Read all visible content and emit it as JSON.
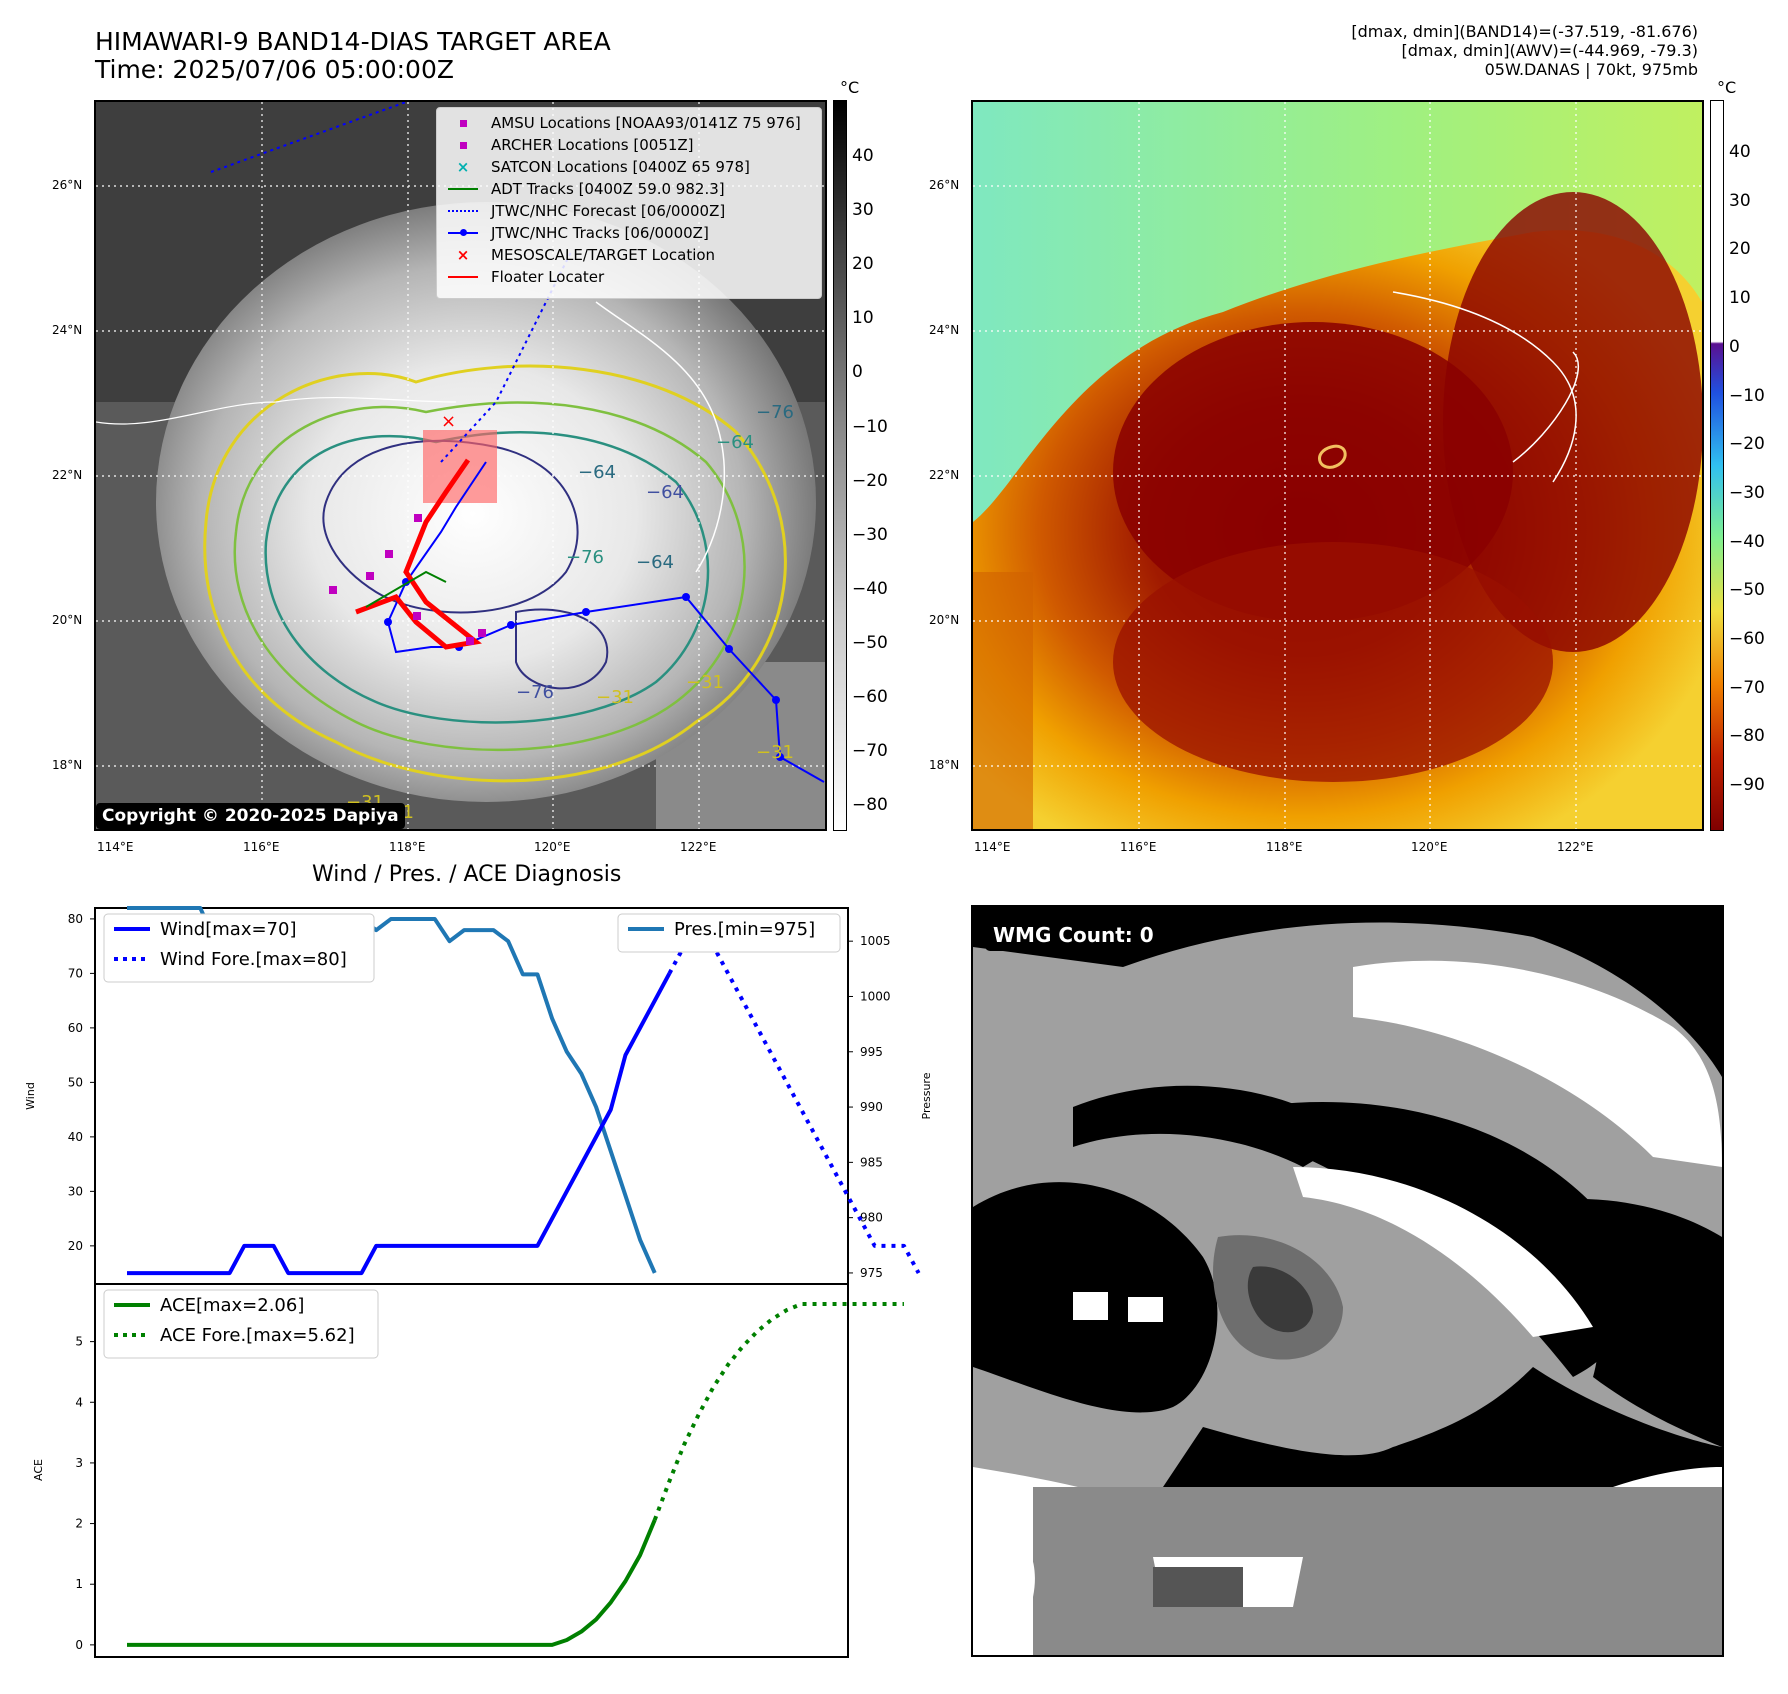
{
  "header": {
    "title_line1": "HIMAWARI-9 BAND14-DIAS TARGET AREA",
    "title_line2": "Time: 2025/07/06 05:00:00Z",
    "info_line1": "[dmax, dmin](BAND14)=(-37.519, -81.676)",
    "info_line2": "[dmax, dmin](AWV)=(-44.969, -79.3)",
    "info_line3": "05W.DANAS | 70kt, 975mb"
  },
  "map_panel": {
    "lat_labels": [
      "26°N",
      "24°N",
      "22°N",
      "20°N",
      "18°N"
    ],
    "lon_labels": [
      "114°E",
      "116°E",
      "118°E",
      "120°E",
      "122°E"
    ],
    "colorbar_unit": "°C",
    "colorbar_ticks": [
      "40",
      "30",
      "20",
      "10",
      "0",
      "−10",
      "−20",
      "−30",
      "−40",
      "−50",
      "−60",
      "−70",
      "−80"
    ],
    "copyright": "Copyright © 2020-2025 Dapiya",
    "contour_labels": [
      "−64",
      "−64",
      "−76",
      "−76",
      "−64",
      "−64",
      "−76",
      "−76",
      "−31",
      "−31",
      "−31",
      "−31",
      "−31"
    ],
    "legend": [
      {
        "label": "AMSU Locations [NOAA93/0141Z 75 976]",
        "symbol": "square",
        "color": "#c000c0"
      },
      {
        "label": "ARCHER Locations [0051Z]",
        "symbol": "square",
        "color": "#c000c0"
      },
      {
        "label": "SATCON Locations [0400Z 65 978]",
        "symbol": "x",
        "color": "#00b0b0"
      },
      {
        "label": "ADT Tracks [0400Z 59.0 982.3]",
        "symbol": "line",
        "color": "#008000"
      },
      {
        "label": "JTWC/NHC Forecast [06/0000Z]",
        "symbol": "dotted",
        "color": "#0000ff"
      },
      {
        "label": "JTWC/NHC Tracks [06/0000Z]",
        "symbol": "line-dot",
        "color": "#0000ff"
      },
      {
        "label": "MESOSCALE/TARGET Location",
        "symbol": "x",
        "color": "#ff0000"
      },
      {
        "label": "Floater Locater",
        "symbol": "line",
        "color": "#ff0000"
      }
    ]
  },
  "awv_panel": {
    "lat_labels": [
      "26°N",
      "24°N",
      "22°N",
      "20°N",
      "18°N"
    ],
    "lon_labels": [
      "114°E",
      "116°E",
      "118°E",
      "120°E",
      "122°E"
    ],
    "colorbar_unit": "°C",
    "colorbar_ticks": [
      "40",
      "30",
      "20",
      "10",
      "0",
      "−10",
      "−20",
      "−30",
      "−40",
      "−50",
      "−60",
      "−70",
      "−80",
      "−90"
    ]
  },
  "wmg_panel": {
    "label": "WMG Count: 0"
  },
  "diagnosis": {
    "title": "Wind / Pres. / ACE Diagnosis",
    "colors": {
      "wind": "#0000ff",
      "pres": "#1f77b4",
      "ace": "#008000"
    }
  },
  "chart_data": [
    {
      "type": "line",
      "ylabel": "Wind",
      "ylim": [
        13,
        82
      ],
      "y_ticks": [
        20,
        30,
        40,
        50,
        60,
        70,
        80
      ],
      "x_count": 48,
      "legend_placement": "upper-left",
      "series": [
        {
          "name": "Wind[max=70]",
          "style": "solid",
          "x_start": 0,
          "values": [
            15,
            15,
            15,
            15,
            15,
            15,
            15,
            15,
            20,
            20,
            20,
            15,
            15,
            15,
            15,
            15,
            15,
            20,
            20,
            20,
            20,
            20,
            20,
            20,
            20,
            20,
            20,
            20,
            20,
            25,
            30,
            35,
            40,
            45,
            55,
            60,
            65,
            70
          ]
        },
        {
          "name": "Wind Fore.[max=80]",
          "style": "dotted",
          "x_start": 37,
          "values": [
            70,
            75,
            80,
            75,
            70,
            65,
            60,
            55,
            50,
            45,
            40,
            35,
            30,
            25,
            20,
            20,
            20,
            15
          ]
        }
      ]
    },
    {
      "type": "line",
      "ylabel": "Pressure",
      "ylim": [
        974,
        1008
      ],
      "y_ticks": [
        975,
        980,
        985,
        990,
        995,
        1000,
        1005
      ],
      "legend_placement": "upper-right",
      "series": [
        {
          "name": "Pres.[min=975]",
          "style": "solid",
          "x_start": 0,
          "values": [
            1008,
            1008,
            1008,
            1008,
            1008,
            1008,
            1005,
            1005,
            1005,
            1005,
            1005,
            1006,
            1006,
            1006,
            1006,
            1007,
            1007,
            1006,
            1007,
            1007,
            1007,
            1007,
            1005,
            1006,
            1006,
            1006,
            1005,
            1002,
            1002,
            998,
            995,
            993,
            990,
            986,
            982,
            978,
            975
          ]
        }
      ]
    },
    {
      "type": "line",
      "ylabel": "ACE",
      "ylim": [
        -0.2,
        5.95
      ],
      "y_ticks": [
        0,
        1,
        2,
        3,
        4,
        5
      ],
      "legend_placement": "upper-left",
      "series": [
        {
          "name": "ACE[max=2.06]",
          "style": "solid",
          "x_start": 0,
          "values": [
            0,
            0,
            0,
            0,
            0,
            0,
            0,
            0,
            0,
            0,
            0,
            0,
            0,
            0,
            0,
            0,
            0,
            0,
            0,
            0,
            0,
            0,
            0,
            0,
            0,
            0,
            0,
            0,
            0,
            0,
            0.08,
            0.22,
            0.42,
            0.7,
            1.05,
            1.48,
            2.06
          ]
        },
        {
          "name": "ACE Fore.[max=5.62]",
          "style": "dotted",
          "x_start": 36,
          "values": [
            2.06,
            2.7,
            3.3,
            3.8,
            4.25,
            4.62,
            4.92,
            5.17,
            5.37,
            5.52,
            5.62,
            5.62,
            5.62,
            5.62,
            5.62,
            5.62,
            5.62,
            5.62
          ]
        }
      ]
    }
  ]
}
